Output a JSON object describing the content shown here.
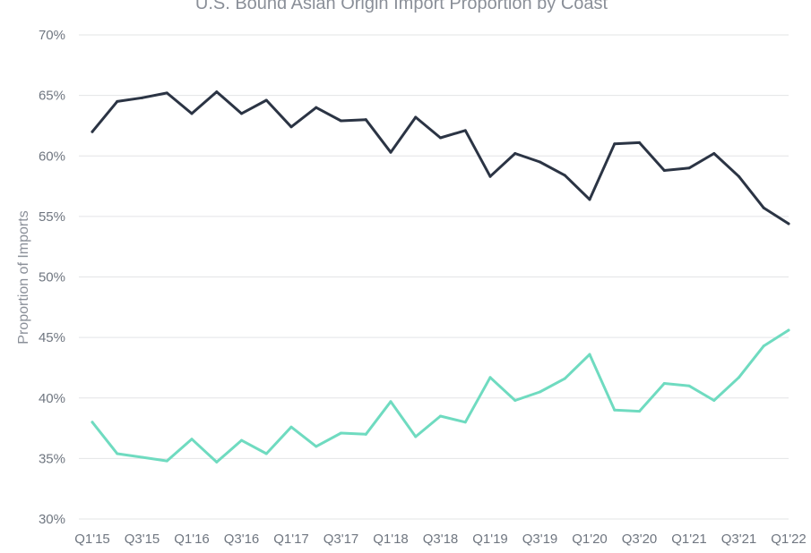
{
  "chart_data": {
    "type": "line",
    "title": "U.S. Bound Asian Origin Import Proportion by Coast",
    "xlabel": "",
    "ylabel": "Proportion of Imports",
    "ylim": [
      30,
      70
    ],
    "y_ticks": [
      "30%",
      "35%",
      "40%",
      "45%",
      "50%",
      "55%",
      "60%",
      "65%",
      "70%"
    ],
    "y_tick_values": [
      30,
      35,
      40,
      45,
      50,
      55,
      60,
      65,
      70
    ],
    "grid": true,
    "legend": "none",
    "x_tick_labels": [
      "Q1'15",
      "Q3'15",
      "Q1'16",
      "Q3'16",
      "Q1'17",
      "Q3'17",
      "Q1'18",
      "Q3'18",
      "Q1'19",
      "Q3'19",
      "Q1'20",
      "Q3'20",
      "Q1'21",
      "Q3'21",
      "Q1'22"
    ],
    "categories": [
      "Q1'15",
      "Q2'15",
      "Q3'15",
      "Q4'15",
      "Q1'16",
      "Q2'16",
      "Q3'16",
      "Q4'16",
      "Q1'17",
      "Q2'17",
      "Q3'17",
      "Q4'17",
      "Q1'18",
      "Q2'18",
      "Q3'18",
      "Q4'18",
      "Q1'19",
      "Q2'19",
      "Q3'19",
      "Q4'19",
      "Q1'20",
      "Q2'20",
      "Q3'20",
      "Q4'20",
      "Q1'21",
      "Q2'21",
      "Q3'21",
      "Q4'21",
      "Q1'22"
    ],
    "series": [
      {
        "color": "#2b3444",
        "values": [
          62.0,
          64.5,
          64.8,
          65.2,
          63.5,
          65.3,
          63.5,
          64.6,
          62.4,
          64.0,
          62.9,
          63.0,
          60.3,
          63.2,
          61.5,
          62.1,
          58.3,
          60.2,
          59.5,
          58.4,
          56.4,
          61.0,
          61.1,
          58.8,
          59.0,
          60.2,
          58.3,
          55.7,
          54.4
        ]
      },
      {
        "color": "#6fdbc0",
        "values": [
          38.0,
          35.4,
          35.1,
          34.8,
          36.6,
          34.7,
          36.5,
          35.4,
          37.6,
          36.0,
          37.1,
          37.0,
          39.7,
          36.8,
          38.5,
          38.0,
          41.7,
          39.8,
          40.5,
          41.6,
          43.6,
          39.0,
          38.9,
          41.2,
          41.0,
          39.8,
          41.7,
          44.3,
          45.6
        ]
      }
    ]
  }
}
